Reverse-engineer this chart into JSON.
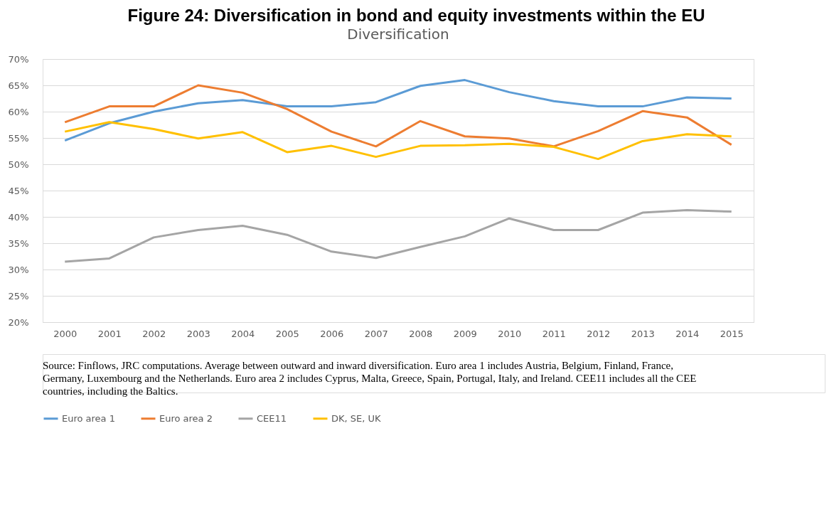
{
  "chart_data": {
    "type": "line",
    "title": "Figure 24: Diversification in bond and equity investments within the EU",
    "subtitle": "Diversification",
    "categories": [
      "2000",
      "2001",
      "2002",
      "2003",
      "2004",
      "2005",
      "2006",
      "2007",
      "2008",
      "2009",
      "2010",
      "2011",
      "2012",
      "2013",
      "2014",
      "2015"
    ],
    "series": [
      {
        "name": "Euro area 1",
        "color": "#5b9bd5",
        "values": [
          54.5,
          57.8,
          60.0,
          61.6,
          62.2,
          61.0,
          61.0,
          61.8,
          64.9,
          66.0,
          63.7,
          62.0,
          61.0,
          61.0,
          62.7,
          62.5
        ]
      },
      {
        "name": "Euro area 2",
        "color": "#ed7d31",
        "values": [
          58.0,
          61.0,
          61.0,
          65.0,
          63.6,
          60.5,
          56.2,
          53.4,
          58.2,
          55.3,
          54.9,
          53.4,
          56.3,
          60.1,
          58.9,
          53.7
        ]
      },
      {
        "name": "CEE11",
        "color": "#a5a5a5",
        "values": [
          31.5,
          32.1,
          36.1,
          37.5,
          38.3,
          36.6,
          33.4,
          32.2,
          34.3,
          36.3,
          39.7,
          37.5,
          37.5,
          40.8,
          41.3,
          41.0
        ]
      },
      {
        "name": "DK, SE, UK",
        "color": "#ffc000",
        "values": [
          56.2,
          58.0,
          56.7,
          54.9,
          56.1,
          52.3,
          53.5,
          51.4,
          53.5,
          53.6,
          53.9,
          53.3,
          51.0,
          54.4,
          55.7,
          55.3
        ]
      }
    ],
    "ylim": [
      20,
      70
    ],
    "yticks": [
      {
        "value": 20,
        "label": "20%"
      },
      {
        "value": 25,
        "label": "25%"
      },
      {
        "value": 30,
        "label": "30%"
      },
      {
        "value": 35,
        "label": "35%"
      },
      {
        "value": 40,
        "label": "40%"
      },
      {
        "value": 45,
        "label": "45%"
      },
      {
        "value": 50,
        "label": "50%"
      },
      {
        "value": 55,
        "label": "55%"
      },
      {
        "value": 60,
        "label": "60%"
      },
      {
        "value": 65,
        "label": "65%"
      },
      {
        "value": 70,
        "label": "70%"
      }
    ],
    "grid": "y",
    "legend": "bottom",
    "annotations": [
      "Source: Finflows, JRC computations. Average between outward and inward diversification. Euro area 1 includes Austria, Belgium, Finland, France, Germany, Luxembourg and the Netherlands. Euro area 2 includes Cyprus, Malta, Greece, Spain, Portugal, Italy, and Ireland. CEE11 includes all the CEE countries, including the Baltics."
    ]
  }
}
